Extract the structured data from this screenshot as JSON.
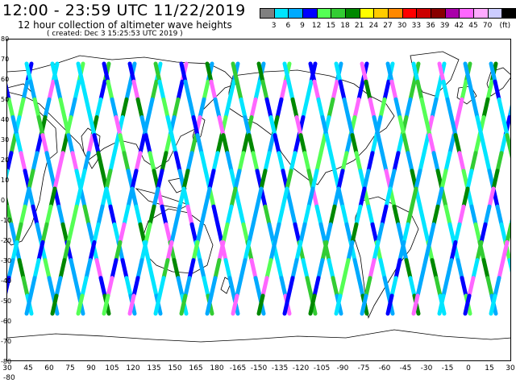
{
  "title": "12:00 - 23:59 UTC 11/22/2019",
  "subtitle": "12 hour collection of altimeter wave heights",
  "created": "( created: Dec  3 15:25:53 UTC 2019 )",
  "legend": {
    "colors": [
      "#808080",
      "#00e5ff",
      "#00aaff",
      "#0000ff",
      "#55ff55",
      "#33cc33",
      "#008800",
      "#ffff00",
      "#ffcc00",
      "#ff8800",
      "#ff0000",
      "#cc0000",
      "#880000",
      "#aa00aa",
      "#ff66ff",
      "#ffaaff",
      "#ccccff",
      "#000000"
    ],
    "labels": [
      "3",
      "6",
      "9",
      "12",
      "15",
      "18",
      "21",
      "24",
      "27",
      "30",
      "33",
      "36",
      "39",
      "42",
      "45",
      "70",
      "(ft)"
    ]
  },
  "lat_labels": [
    "80",
    "70",
    "60",
    "50",
    "40",
    "30",
    "20",
    "10",
    "0",
    "-10",
    "-20",
    "-30",
    "-40",
    "-50",
    "-60",
    "-70",
    "-80"
  ],
  "lon_labels": [
    "30",
    "45",
    "60",
    "75",
    "90",
    "105",
    "120",
    "135",
    "150",
    "165",
    "180",
    "-165",
    "-150",
    "-135",
    "-120",
    "-105",
    "-90",
    "-75",
    "-60",
    "-45",
    "-30",
    "-15",
    "0",
    "15",
    "30"
  ],
  "lon_extra": "-80"
}
